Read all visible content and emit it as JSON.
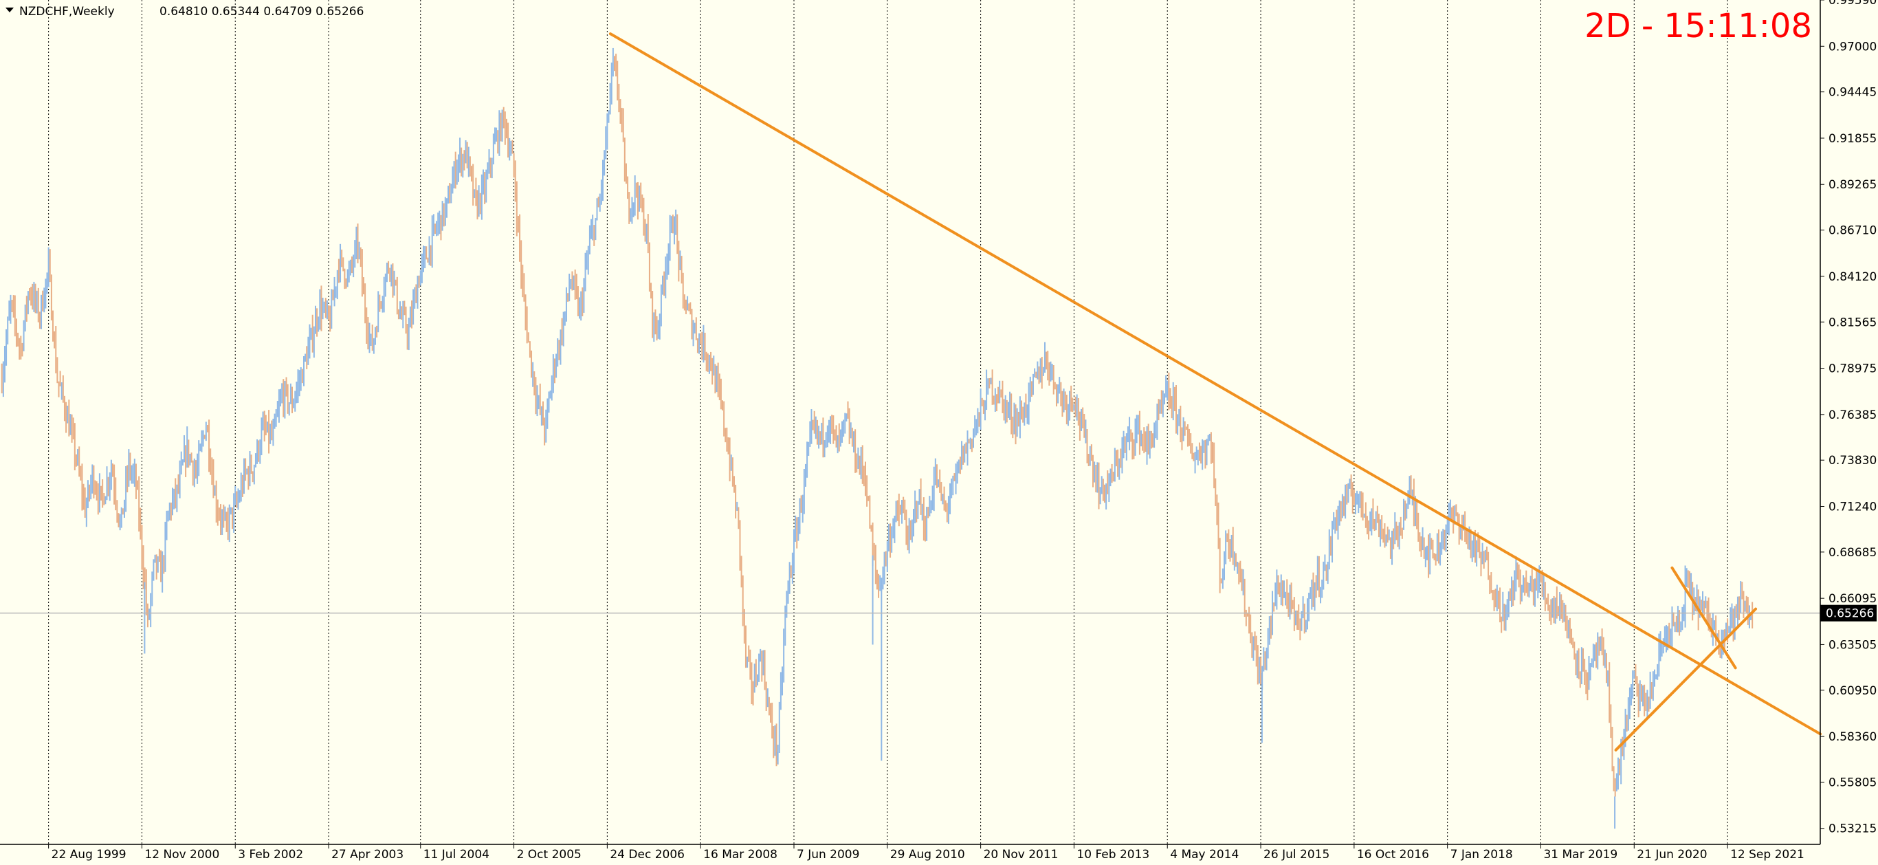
{
  "header": {
    "symbol": "NZDCHF,Weekly",
    "ohlc": "0.64810 0.65344 0.64709 0.65266",
    "countdown": "2D - 15:11:08"
  },
  "colors": {
    "background": "#fffff0",
    "axis": "#000000",
    "grid": "#000000",
    "bull_bar": "#8fb8e6",
    "bear_bar": "#e8ae85",
    "trendline": "#f0901e",
    "countdown": "#ff0000",
    "price_line": "#b8b8b8",
    "price_label_bg": "#000000",
    "price_label_fg": "#ffffff"
  },
  "chart_data": {
    "type": "candlestick",
    "symbol": "NZDCHF",
    "timeframe": "Weekly",
    "ylim": [
      0.5232,
      0.9959
    ],
    "y_ticks": [
      "0.99590",
      "0.97000",
      "0.94445",
      "0.91855",
      "0.89265",
      "0.86710",
      "0.84120",
      "0.81565",
      "0.78975",
      "0.76385",
      "0.73830",
      "0.71240",
      "0.68685",
      "0.66095",
      "0.63505",
      "0.60950",
      "0.58360",
      "0.55805",
      "0.53215"
    ],
    "current_price": "0.65266",
    "x_ticks": [
      "22 Aug 1999",
      "12 Nov 2000",
      "3 Feb 2002",
      "27 Apr 2003",
      "11 Jul 2004",
      "2 Oct 2005",
      "24 Dec 2006",
      "16 Mar 2008",
      "7 Jun 2009",
      "29 Aug 2010",
      "20 Nov 2011",
      "10 Feb 2013",
      "4 May 2014",
      "26 Jul 2015",
      "16 Oct 2016",
      "7 Jan 2018",
      "31 Mar 2019",
      "21 Jun 2020",
      "12 Sep 2021"
    ],
    "x_domain": [
      "1999-01-01",
      "2022-12-01"
    ],
    "grid": "vertical dotted at date ticks",
    "price_path": [
      [
        "1999-01-10",
        0.785
      ],
      [
        "1999-02-20",
        0.825
      ],
      [
        "1999-04-10",
        0.8
      ],
      [
        "1999-05-20",
        0.835
      ],
      [
        "1999-07-10",
        0.82
      ],
      [
        "1999-08-22",
        0.845
      ],
      [
        "1999-10-01",
        0.785
      ],
      [
        "1999-11-15",
        0.765
      ],
      [
        "2000-01-01",
        0.74
      ],
      [
        "2000-02-15",
        0.71
      ],
      [
        "2000-03-20",
        0.73
      ],
      [
        "2000-05-01",
        0.715
      ],
      [
        "2000-06-20",
        0.735
      ],
      [
        "2000-08-01",
        0.7
      ],
      [
        "2000-09-10",
        0.735
      ],
      [
        "2000-10-15",
        0.725
      ],
      [
        "2000-11-25",
        0.67
      ],
      [
        "2000-12-10",
        0.645
      ],
      [
        "2001-01-10",
        0.68
      ],
      [
        "2001-02-15",
        0.675
      ],
      [
        "2001-03-20",
        0.71
      ],
      [
        "2001-05-01",
        0.72
      ],
      [
        "2001-06-15",
        0.745
      ],
      [
        "2001-08-01",
        0.73
      ],
      [
        "2001-09-15",
        0.76
      ],
      [
        "2001-11-01",
        0.715
      ],
      [
        "2001-12-15",
        0.7
      ],
      [
        "2002-02-15",
        0.715
      ],
      [
        "2002-03-20",
        0.73
      ],
      [
        "2002-05-01",
        0.735
      ],
      [
        "2002-06-15",
        0.755
      ],
      [
        "2002-08-01",
        0.75
      ],
      [
        "2002-09-15",
        0.775
      ],
      [
        "2002-11-01",
        0.77
      ],
      [
        "2002-12-15",
        0.785
      ],
      [
        "2003-02-01",
        0.805
      ],
      [
        "2003-03-15",
        0.825
      ],
      [
        "2003-05-01",
        0.815
      ],
      [
        "2003-06-15",
        0.85
      ],
      [
        "2003-08-01",
        0.84
      ],
      [
        "2003-09-15",
        0.86
      ],
      [
        "2003-10-15",
        0.825
      ],
      [
        "2003-11-20",
        0.8
      ],
      [
        "2004-01-01",
        0.83
      ],
      [
        "2004-02-15",
        0.85
      ],
      [
        "2004-04-01",
        0.82
      ],
      [
        "2004-05-15",
        0.81
      ],
      [
        "2004-07-01",
        0.84
      ],
      [
        "2004-08-15",
        0.855
      ],
      [
        "2004-10-01",
        0.87
      ],
      [
        "2004-11-15",
        0.88
      ],
      [
        "2005-01-01",
        0.905
      ],
      [
        "2005-02-15",
        0.91
      ],
      [
        "2005-04-01",
        0.88
      ],
      [
        "2005-05-15",
        0.89
      ],
      [
        "2005-07-01",
        0.915
      ],
      [
        "2005-08-15",
        0.93
      ],
      [
        "2005-10-02",
        0.9
      ],
      [
        "2005-11-15",
        0.83
      ],
      [
        "2005-12-20",
        0.795
      ],
      [
        "2006-01-25",
        0.77
      ],
      [
        "2006-03-01",
        0.755
      ],
      [
        "2006-04-10",
        0.79
      ],
      [
        "2006-05-20",
        0.81
      ],
      [
        "2006-07-01",
        0.84
      ],
      [
        "2006-08-15",
        0.82
      ],
      [
        "2006-10-01",
        0.86
      ],
      [
        "2006-11-15",
        0.88
      ],
      [
        "2006-12-20",
        0.92
      ],
      [
        "2007-01-20",
        0.96
      ],
      [
        "2007-02-20",
        0.94
      ],
      [
        "2007-04-01",
        0.88
      ],
      [
        "2007-05-15",
        0.89
      ],
      [
        "2007-07-01",
        0.865
      ],
      [
        "2007-07-25",
        0.82
      ],
      [
        "2007-08-20",
        0.81
      ],
      [
        "2007-10-01",
        0.85
      ],
      [
        "2007-11-10",
        0.875
      ],
      [
        "2007-12-20",
        0.83
      ],
      [
        "2008-02-01",
        0.815
      ],
      [
        "2008-03-16",
        0.805
      ],
      [
        "2008-05-01",
        0.795
      ],
      [
        "2008-06-20",
        0.77
      ],
      [
        "2008-08-01",
        0.74
      ],
      [
        "2008-09-15",
        0.7
      ],
      [
        "2008-10-15",
        0.63
      ],
      [
        "2008-11-20",
        0.61
      ],
      [
        "2009-01-01",
        0.63
      ],
      [
        "2009-02-15",
        0.59
      ],
      [
        "2009-03-20",
        0.575
      ],
      [
        "2009-05-01",
        0.66
      ],
      [
        "2009-06-07",
        0.69
      ],
      [
        "2009-07-20",
        0.72
      ],
      [
        "2009-09-01",
        0.755
      ],
      [
        "2009-10-15",
        0.75
      ],
      [
        "2009-11-20",
        0.76
      ],
      [
        "2010-01-01",
        0.745
      ],
      [
        "2010-02-15",
        0.76
      ],
      [
        "2010-04-01",
        0.74
      ],
      [
        "2010-05-15",
        0.73
      ],
      [
        "2010-06-20",
        0.685
      ],
      [
        "2010-07-20",
        0.665
      ],
      [
        "2010-08-29",
        0.69
      ],
      [
        "2010-10-01",
        0.705
      ],
      [
        "2010-11-10",
        0.71
      ],
      [
        "2010-12-15",
        0.69
      ],
      [
        "2011-01-20",
        0.72
      ],
      [
        "2011-03-01",
        0.7
      ],
      [
        "2011-04-15",
        0.73
      ],
      [
        "2011-06-01",
        0.71
      ],
      [
        "2011-07-20",
        0.725
      ],
      [
        "2011-08-20",
        0.74
      ],
      [
        "2011-10-01",
        0.75
      ],
      [
        "2011-11-20",
        0.765
      ],
      [
        "2012-01-01",
        0.78
      ],
      [
        "2012-02-15",
        0.775
      ],
      [
        "2012-04-01",
        0.765
      ],
      [
        "2012-05-15",
        0.76
      ],
      [
        "2012-07-01",
        0.77
      ],
      [
        "2012-08-15",
        0.785
      ],
      [
        "2012-10-01",
        0.795
      ],
      [
        "2012-11-15",
        0.78
      ],
      [
        "2013-01-01",
        0.77
      ],
      [
        "2013-02-10",
        0.775
      ],
      [
        "2013-03-20",
        0.755
      ],
      [
        "2013-05-01",
        0.74
      ],
      [
        "2013-06-15",
        0.72
      ],
      [
        "2013-08-01",
        0.725
      ],
      [
        "2013-09-15",
        0.74
      ],
      [
        "2013-11-01",
        0.75
      ],
      [
        "2013-12-15",
        0.755
      ],
      [
        "2014-02-01",
        0.745
      ],
      [
        "2014-03-15",
        0.76
      ],
      [
        "2014-05-04",
        0.775
      ],
      [
        "2014-06-15",
        0.765
      ],
      [
        "2014-08-01",
        0.75
      ],
      [
        "2014-09-15",
        0.74
      ],
      [
        "2014-10-20",
        0.745
      ],
      [
        "2014-12-01",
        0.75
      ],
      [
        "2015-01-15",
        0.67
      ],
      [
        "2015-02-15",
        0.695
      ],
      [
        "2015-04-01",
        0.685
      ],
      [
        "2015-05-15",
        0.655
      ],
      [
        "2015-07-26",
        0.615
      ],
      [
        "2015-09-01",
        0.64
      ],
      [
        "2015-10-15",
        0.67
      ],
      [
        "2015-12-01",
        0.66
      ],
      [
        "2016-01-15",
        0.645
      ],
      [
        "2016-03-01",
        0.655
      ],
      [
        "2016-04-15",
        0.67
      ],
      [
        "2016-06-01",
        0.675
      ],
      [
        "2016-07-15",
        0.705
      ],
      [
        "2016-09-01",
        0.715
      ],
      [
        "2016-10-16",
        0.72
      ],
      [
        "2016-12-01",
        0.71
      ],
      [
        "2017-01-15",
        0.705
      ],
      [
        "2017-03-01",
        0.7
      ],
      [
        "2017-04-15",
        0.69
      ],
      [
        "2017-06-01",
        0.705
      ],
      [
        "2017-07-15",
        0.72
      ],
      [
        "2017-09-01",
        0.695
      ],
      [
        "2017-10-15",
        0.685
      ],
      [
        "2017-12-01",
        0.69
      ],
      [
        "2018-01-07",
        0.705
      ],
      [
        "2018-03-01",
        0.705
      ],
      [
        "2018-04-15",
        0.695
      ],
      [
        "2018-06-01",
        0.685
      ],
      [
        "2018-07-15",
        0.68
      ],
      [
        "2018-09-01",
        0.66
      ],
      [
        "2018-10-15",
        0.65
      ],
      [
        "2018-12-01",
        0.675
      ],
      [
        "2019-01-15",
        0.665
      ],
      [
        "2019-03-31",
        0.67
      ],
      [
        "2019-05-15",
        0.655
      ],
      [
        "2019-07-01",
        0.66
      ],
      [
        "2019-08-15",
        0.64
      ],
      [
        "2019-10-01",
        0.625
      ],
      [
        "2019-11-15",
        0.615
      ],
      [
        "2020-01-01",
        0.635
      ],
      [
        "2020-02-15",
        0.615
      ],
      [
        "2020-03-20",
        0.55
      ],
      [
        "2020-04-20",
        0.575
      ],
      [
        "2020-06-01",
        0.605
      ],
      [
        "2020-06-21",
        0.615
      ],
      [
        "2020-08-01",
        0.6
      ],
      [
        "2020-09-15",
        0.61
      ],
      [
        "2020-11-01",
        0.635
      ],
      [
        "2020-12-15",
        0.645
      ],
      [
        "2021-02-01",
        0.645
      ],
      [
        "2021-02-25",
        0.67
      ],
      [
        "2021-04-01",
        0.66
      ],
      [
        "2021-05-15",
        0.655
      ],
      [
        "2021-07-01",
        0.645
      ],
      [
        "2021-08-15",
        0.64
      ],
      [
        "2021-09-12",
        0.645
      ],
      [
        "2021-10-15",
        0.65
      ],
      [
        "2021-11-20",
        0.66
      ],
      [
        "2021-12-20",
        0.652
      ],
      [
        "2022-01-15",
        0.6527
      ]
    ],
    "spikes": [
      [
        "2000-11-25",
        0.63
      ],
      [
        "2010-06-20",
        0.635
      ],
      [
        "2010-08-01",
        0.57
      ],
      [
        "2015-08-01",
        0.58
      ],
      [
        "2020-03-20",
        0.532
      ],
      [
        "2009-03-20",
        0.57
      ]
    ],
    "trendlines": [
      {
        "name": "long-term-resistance",
        "from": [
          "2007-01-08",
          0.977
        ],
        "to": [
          "2022-12-01",
          0.585
        ]
      },
      {
        "name": "support",
        "from": [
          "2020-03-25",
          0.576
        ],
        "to": [
          "2022-01-25",
          0.655
        ]
      },
      {
        "name": "wedge-upper",
        "from": [
          "2020-12-20",
          0.678
        ],
        "to": [
          "2021-10-20",
          0.622
        ]
      }
    ]
  }
}
